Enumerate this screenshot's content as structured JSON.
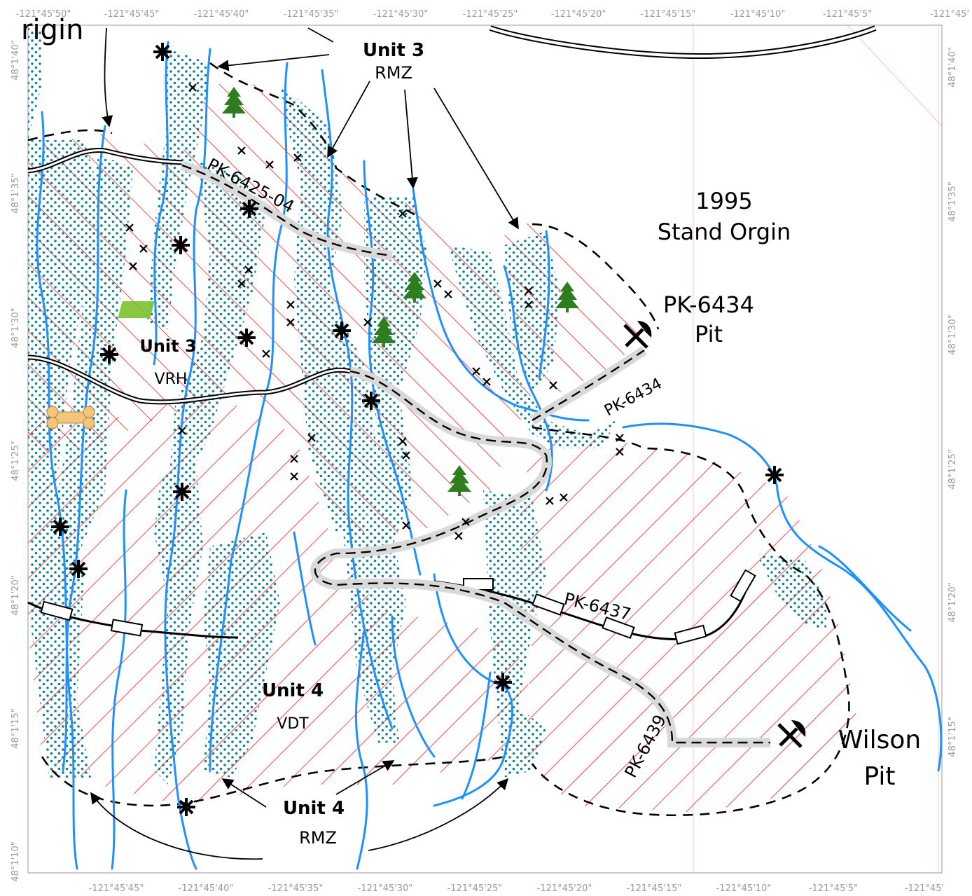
{
  "map": {
    "top_ticks": [
      "-121°45'50\"",
      "-121°45'45\"",
      "-121°45'40\"",
      "-121°45'35\"",
      "-121°45'30\"",
      "-121°45'25\"",
      "-121°45'20\"",
      "-121°45'15\"",
      "-121°45'10\"",
      "-121°45'5\"",
      "-121°45'"
    ],
    "bottom_ticks": [
      "-121°45'45\"",
      "-121°45'40\"",
      "-121°45'35\"",
      "-121°45'30\"",
      "-121°45'25\"",
      "-121°45'20\"",
      "-121°45'15\"",
      "-121°45'10\"",
      "-121°45'5\"",
      "-121°45'"
    ],
    "left_ticks": [
      "48°1'40\"",
      "48°1'35\"",
      "48°1'30\"",
      "48°1'25\"",
      "48°1'20\"",
      "48°1'15\"",
      "48°1'10\""
    ],
    "right_ticks": [
      "48°1'40\"",
      "48°1'35\"",
      "48°1'30\"",
      "48°1'25\"",
      "48°1'20\"",
      "48°1'15\""
    ],
    "partial_label": "rigin",
    "unit3_rmz": {
      "unit": "Unit 3",
      "type": "RMZ"
    },
    "stand_origin": {
      "year": "1995",
      "text": "Stand Orgin"
    },
    "pit_6434": {
      "name": "PK-6434",
      "type": "Pit"
    },
    "unit3_vrh": {
      "unit": "Unit 3",
      "type": "VRH"
    },
    "unit4_vdt": {
      "unit": "Unit 4",
      "type": "VDT"
    },
    "unit4_rmz": {
      "unit": "Unit 4",
      "type": "RMZ"
    },
    "wilson_pit": {
      "name": "Wilson",
      "type": "Pit"
    },
    "roads": {
      "r6425": "PK-6425-04",
      "r6434": "PK-6434",
      "r6437": "PK-6437",
      "r6439": "PK-6439"
    },
    "colors": {
      "stream": "#1e90ff",
      "hatch": "#ff0000",
      "riparian_dots": "#0f7f8f",
      "road_halo": "#d9d9d9",
      "tree": "#2e7d1e",
      "wetland": "#7cc22f",
      "bone": "#f3c77b"
    },
    "icons": [
      "tree-icon",
      "snag-asterisk-icon",
      "pick-axe-icon",
      "bone-culvert-icon",
      "wetland-icon"
    ]
  }
}
